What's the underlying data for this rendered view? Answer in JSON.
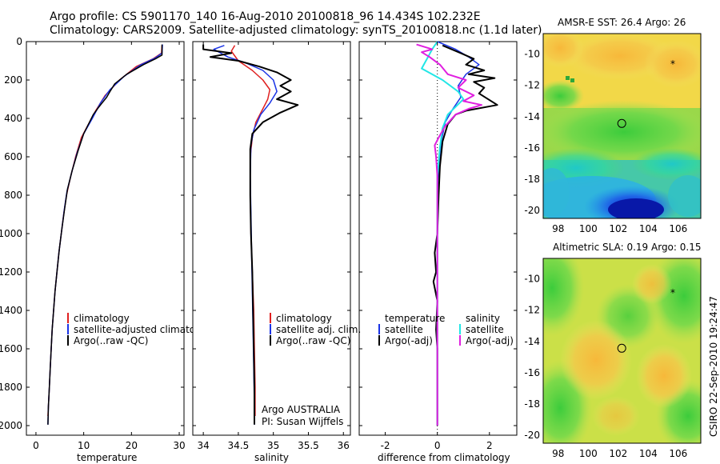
{
  "title_line1": "Argo profile: CS 5901170_140 16-Aug-2010 20100818_96 14.434S 102.232E",
  "title_line2": "Climatology: CARS2009. Satellite-adjusted climatology: synTS_20100818.nc (1.1d later)",
  "side_label": "CSIRO 22-Sep-2010 19:24:47",
  "colors": {
    "clim": "#e02020",
    "sat": "#1a33e6",
    "argo": "#000000",
    "sat_sal": "#22e6e6",
    "argo_sal": "#e020e0"
  },
  "chart_data": [
    {
      "type": "line",
      "name": "temperature-panel",
      "xlabel": "temperature",
      "xlim": [
        -2,
        31
      ],
      "ylim": [
        2050,
        0
      ],
      "xticks": [
        "0",
        "10",
        "20",
        "30"
      ],
      "xtick_values": [
        0,
        10,
        20,
        30
      ],
      "yticks": [
        "0",
        "200",
        "400",
        "600",
        "800",
        "1000",
        "1200",
        "1400",
        "1600",
        "1800",
        "2000"
      ],
      "ytick_values": [
        0,
        200,
        400,
        600,
        800,
        1000,
        1200,
        1400,
        1600,
        1800,
        2000
      ],
      "legend": [
        "climatology",
        "satellite-adjusted climatology",
        "Argo(..raw -QC)"
      ],
      "series": [
        {
          "name": "climatology",
          "color": "#e02020",
          "width": 1.5,
          "points": [
            [
              26.4,
              20
            ],
            [
              26.3,
              60
            ],
            [
              24.5,
              90
            ],
            [
              21,
              130
            ],
            [
              17.5,
              200
            ],
            [
              14.5,
              280
            ],
            [
              12.5,
              360
            ],
            [
              11,
              430
            ],
            [
              9.5,
              500
            ],
            [
              8.3,
              600
            ],
            [
              7.3,
              700
            ],
            [
              6.4,
              800
            ],
            [
              5.8,
              900
            ],
            [
              5.3,
              1000
            ],
            [
              4.8,
              1100
            ],
            [
              4.4,
              1200
            ],
            [
              4,
              1300
            ],
            [
              3.7,
              1400
            ],
            [
              3.4,
              1500
            ],
            [
              3.2,
              1600
            ],
            [
              3,
              1700
            ],
            [
              2.8,
              1800
            ],
            [
              2.6,
              1900
            ],
            [
              2.5,
              1950
            ]
          ]
        },
        {
          "name": "satellite",
          "color": "#1a33e6",
          "width": 1.5,
          "points": [
            [
              26.5,
              15
            ],
            [
              26.4,
              60
            ],
            [
              25,
              85
            ],
            [
              22,
              120
            ],
            [
              18.5,
              180
            ],
            [
              15.5,
              250
            ],
            [
              13.5,
              320
            ],
            [
              11.8,
              400
            ],
            [
              10,
              480
            ],
            [
              8.6,
              580
            ],
            [
              7.5,
              680
            ],
            [
              6.5,
              780
            ],
            [
              5.9,
              880
            ],
            [
              5.3,
              1000
            ],
            [
              4.8,
              1100
            ],
            [
              4.4,
              1200
            ],
            [
              4,
              1300
            ],
            [
              3.7,
              1400
            ],
            [
              3.4,
              1500
            ],
            [
              3.2,
              1600
            ],
            [
              3,
              1700
            ],
            [
              2.8,
              1800
            ],
            [
              2.6,
              1900
            ],
            [
              2.5,
              1995
            ]
          ]
        },
        {
          "name": "argo",
          "color": "#000000",
          "width": 1.5,
          "points": [
            [
              26.4,
              15
            ],
            [
              26.4,
              70
            ],
            [
              25,
              90
            ],
            [
              22.5,
              120
            ],
            [
              19,
              170
            ],
            [
              16.5,
              220
            ],
            [
              15.5,
              260
            ],
            [
              14.8,
              290
            ],
            [
              13.2,
              340
            ],
            [
              12,
              380
            ],
            [
              11.2,
              420
            ],
            [
              10,
              480
            ],
            [
              8.8,
              570
            ],
            [
              7.6,
              670
            ],
            [
              6.6,
              770
            ],
            [
              6,
              870
            ],
            [
              5.4,
              980
            ],
            [
              4.9,
              1080
            ],
            [
              4.4,
              1200
            ],
            [
              4,
              1300
            ],
            [
              3.7,
              1400
            ],
            [
              3.4,
              1500
            ],
            [
              3.2,
              1600
            ],
            [
              3,
              1700
            ],
            [
              2.8,
              1800
            ],
            [
              2.6,
              1900
            ],
            [
              2.5,
              1995
            ]
          ]
        }
      ]
    },
    {
      "type": "line",
      "name": "salinity-panel",
      "xlabel": "salinity",
      "xlim": [
        33.85,
        36.1
      ],
      "ylim": [
        2050,
        0
      ],
      "xticks": [
        "34",
        "34.5",
        "35",
        "35.5",
        "36"
      ],
      "xtick_values": [
        34,
        34.5,
        35,
        35.5,
        36
      ],
      "legend": [
        "climatology",
        "satellite adj. clim.",
        "Argo(..raw -QC)"
      ],
      "annotations": [
        "Argo AUSTRALIA",
        "PI: Susan Wijffels"
      ],
      "series": [
        {
          "name": "climatology",
          "color": "#e02020",
          "width": 1.5,
          "points": [
            [
              34.45,
              20
            ],
            [
              34.4,
              50
            ],
            [
              34.5,
              100
            ],
            [
              34.7,
              150
            ],
            [
              34.85,
              200
            ],
            [
              34.95,
              250
            ],
            [
              34.92,
              300
            ],
            [
              34.85,
              350
            ],
            [
              34.75,
              420
            ],
            [
              34.7,
              500
            ],
            [
              34.67,
              600
            ],
            [
              34.67,
              800
            ],
            [
              34.68,
              1000
            ],
            [
              34.7,
              1200
            ],
            [
              34.72,
              1400
            ],
            [
              34.73,
              1600
            ],
            [
              34.74,
              1800
            ],
            [
              34.74,
              1950
            ]
          ]
        },
        {
          "name": "satellite",
          "color": "#1a33e6",
          "width": 1.5,
          "points": [
            [
              34.3,
              20
            ],
            [
              34.15,
              40
            ],
            [
              34.35,
              80
            ],
            [
              34.6,
              110
            ],
            [
              34.85,
              150
            ],
            [
              35,
              200
            ],
            [
              35.05,
              260
            ],
            [
              34.95,
              320
            ],
            [
              34.82,
              380
            ],
            [
              34.72,
              460
            ],
            [
              34.68,
              540
            ],
            [
              34.67,
              700
            ],
            [
              34.68,
              900
            ],
            [
              34.69,
              1100
            ],
            [
              34.7,
              1300
            ],
            [
              34.71,
              1500
            ],
            [
              34.72,
              1700
            ],
            [
              34.73,
              1900
            ],
            [
              34.73,
              1995
            ]
          ]
        },
        {
          "name": "argo",
          "color": "#000000",
          "width": 2,
          "points": [
            [
              34.0,
              15
            ],
            [
              34.0,
              40
            ],
            [
              34.4,
              60
            ],
            [
              34.1,
              80
            ],
            [
              34.5,
              100
            ],
            [
              34.8,
              130
            ],
            [
              35.05,
              160
            ],
            [
              35.25,
              200
            ],
            [
              35.1,
              230
            ],
            [
              35.25,
              260
            ],
            [
              35.05,
              300
            ],
            [
              35.35,
              330
            ],
            [
              35.1,
              370
            ],
            [
              34.85,
              420
            ],
            [
              34.7,
              480
            ],
            [
              34.67,
              560
            ],
            [
              34.67,
              800
            ],
            [
              34.68,
              1000
            ],
            [
              34.7,
              1200
            ],
            [
              34.71,
              1400
            ],
            [
              34.72,
              1600
            ],
            [
              34.73,
              1800
            ],
            [
              34.73,
              1995
            ]
          ]
        }
      ]
    },
    {
      "type": "line",
      "name": "difference-panel",
      "xlabel": "difference from climatology",
      "xlim": [
        -3,
        3.05
      ],
      "ylim": [
        2050,
        0
      ],
      "xticks": [
        "-2",
        "0",
        "2"
      ],
      "xtick_values": [
        -2,
        0,
        2
      ],
      "legend_left_title": "temperature",
      "legend_left": [
        "satellite",
        "Argo(-adj)"
      ],
      "legend_right_title": "salinity",
      "legend_right": [
        "satellite",
        "Argo(-adj)"
      ],
      "series": [
        {
          "name": "temperature satellite",
          "color": "#1a33e6",
          "width": 1.5,
          "points": [
            [
              0,
              0
            ],
            [
              0.7,
              40
            ],
            [
              1.2,
              80
            ],
            [
              1.6,
              120
            ],
            [
              1.1,
              170
            ],
            [
              0.8,
              230
            ],
            [
              0.9,
              290
            ],
            [
              0.6,
              350
            ],
            [
              0.3,
              420
            ],
            [
              0.15,
              520
            ],
            [
              0.05,
              650
            ],
            [
              0,
              800
            ],
            [
              0,
              1000
            ],
            [
              0,
              1400
            ],
            [
              0,
              2000
            ]
          ]
        },
        {
          "name": "temperature argo",
          "color": "#000000",
          "width": 2,
          "points": [
            [
              0.2,
              20
            ],
            [
              0.9,
              60
            ],
            [
              1.4,
              90
            ],
            [
              1.1,
              120
            ],
            [
              1.8,
              150
            ],
            [
              1.2,
              170
            ],
            [
              2.2,
              190
            ],
            [
              1.4,
              210
            ],
            [
              1.8,
              240
            ],
            [
              1.6,
              270
            ],
            [
              2.3,
              330
            ],
            [
              1.1,
              360
            ],
            [
              0.7,
              380
            ],
            [
              0.4,
              430
            ],
            [
              0.2,
              520
            ],
            [
              0.1,
              650
            ],
            [
              0.05,
              800
            ],
            [
              0,
              1000
            ],
            [
              -0.1,
              1100
            ],
            [
              -0.05,
              1200
            ],
            [
              -0.15,
              1250
            ],
            [
              0,
              1350
            ],
            [
              -0.05,
              1500
            ],
            [
              0,
              1600
            ],
            [
              0,
              2000
            ]
          ]
        },
        {
          "name": "salinity satellite",
          "color": "#22e6e6",
          "width": 2,
          "points": [
            [
              0,
              0
            ],
            [
              -0.2,
              40
            ],
            [
              -0.4,
              90
            ],
            [
              -0.6,
              140
            ],
            [
              0.2,
              200
            ],
            [
              0.8,
              260
            ],
            [
              1.0,
              300
            ],
            [
              0.7,
              340
            ],
            [
              0.4,
              380
            ],
            [
              0.2,
              450
            ],
            [
              0.1,
              550
            ],
            [
              0,
              700
            ],
            [
              0,
              900
            ],
            [
              0,
              1200
            ],
            [
              0,
              1500
            ],
            [
              0,
              2000
            ]
          ]
        },
        {
          "name": "salinity argo",
          "color": "#e020e0",
          "width": 2,
          "points": [
            [
              -0.8,
              15
            ],
            [
              -0.2,
              40
            ],
            [
              -0.6,
              55
            ],
            [
              -0.3,
              80
            ],
            [
              0.1,
              120
            ],
            [
              0.4,
              170
            ],
            [
              1.1,
              200
            ],
            [
              0.8,
              240
            ],
            [
              1.4,
              280
            ],
            [
              1.0,
              310
            ],
            [
              1.7,
              330
            ],
            [
              1.2,
              350
            ],
            [
              0.7,
              380
            ],
            [
              0.3,
              440
            ],
            [
              0.05,
              500
            ],
            [
              -0.1,
              540
            ],
            [
              -0.05,
              600
            ],
            [
              0,
              700
            ],
            [
              0,
              1000
            ],
            [
              0,
              1500
            ],
            [
              0,
              2000
            ]
          ]
        }
      ]
    },
    {
      "type": "heatmap",
      "name": "sst-map",
      "title": "AMSR-E SST: 26.4 Argo: 26",
      "xlim": [
        97,
        107.5
      ],
      "ylim": [
        -20.5,
        -8.7
      ],
      "xticks": [
        "98",
        "100",
        "102",
        "104",
        "106"
      ],
      "xtick_values": [
        98,
        100,
        102,
        104,
        106
      ],
      "yticks": [
        "-10",
        "-12",
        "-14",
        "-16",
        "-18",
        "-20"
      ],
      "ytick_values": [
        -10,
        -12,
        -14,
        -16,
        -18,
        -20
      ],
      "marker": [
        102.232,
        -14.434
      ]
    },
    {
      "type": "heatmap",
      "name": "sla-map",
      "title": "Altimetric SLA: 0.19 Argo: 0.15",
      "xlim": [
        97,
        107.5
      ],
      "ylim": [
        -20.5,
        -8.7
      ],
      "xticks": [
        "98",
        "100",
        "102",
        "104",
        "106"
      ],
      "xtick_values": [
        98,
        100,
        102,
        104,
        106
      ],
      "yticks": [
        "-10",
        "-12",
        "-14",
        "-16",
        "-18",
        "-20"
      ],
      "ytick_values": [
        -10,
        -12,
        -14,
        -16,
        -18,
        -20
      ],
      "marker": [
        102.232,
        -14.434
      ]
    }
  ]
}
